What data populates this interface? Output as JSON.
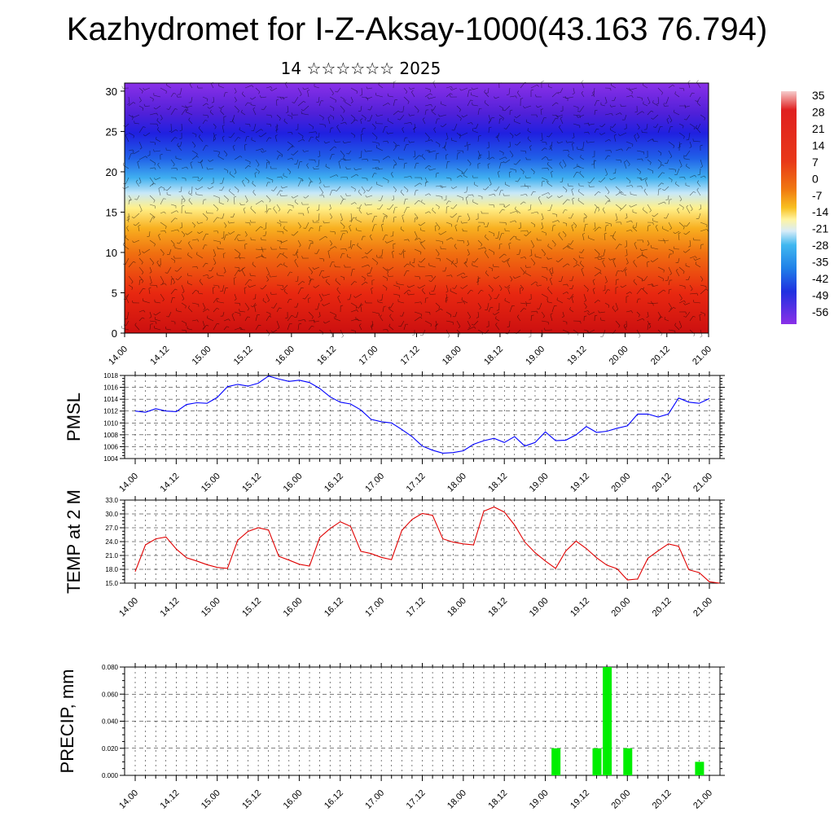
{
  "header": {
    "title": "Kazhydromet for I-Z-Aksay-1000(43.163 76.794)",
    "subtitle": "14 ☆☆☆☆☆☆ 2025"
  },
  "chart_data": [
    {
      "type": "heatmap",
      "name": "cross-section",
      "x_tick_labels": [
        "14.00",
        "14.12",
        "15.00",
        "15.12",
        "16.00",
        "16.12",
        "17.00",
        "17.12",
        "18.00",
        "18.12",
        "19.00",
        "19.12",
        "20.00",
        "20.12",
        "21.00"
      ],
      "y_tick_labels": [
        "0",
        "5",
        "10",
        "15",
        "20",
        "25",
        "30"
      ],
      "ylim": [
        0,
        31
      ],
      "colorbar_labels": [
        "35",
        "28",
        "21",
        "14",
        "7",
        "0",
        "-7",
        "-14",
        "-21",
        "-28",
        "-35",
        "-42",
        "-49",
        "-56"
      ],
      "colors": [
        "#f4c0c0",
        "#e22020",
        "#f06a10",
        "#f8c020",
        "#fff4a0",
        "#c8e8f8",
        "#30a8f0",
        "#2040e0",
        "#3010d0",
        "#8028e0"
      ],
      "note_overlay": "wind barbs and contour lines"
    },
    {
      "type": "line",
      "name": "pmsl",
      "ylabel": "PMSL",
      "ylim": [
        1004,
        1018
      ],
      "y_tick_labels": [
        "1004",
        "1006",
        "1008",
        "1010",
        "1012",
        "1014",
        "1016",
        "1018"
      ],
      "x_tick_labels": [
        "14.00",
        "14.12",
        "15.00",
        "15.12",
        "16.00",
        "16.12",
        "17.00",
        "17.12",
        "18.00",
        "18.12",
        "19.00",
        "19.12",
        "20.00",
        "20.12",
        "21.00"
      ],
      "line_color": "#0000ff",
      "values": [
        1012.0,
        1011.8,
        1012.4,
        1012.0,
        1011.9,
        1013.1,
        1013.4,
        1013.3,
        1014.3,
        1016.1,
        1016.5,
        1016.2,
        1016.7,
        1017.9,
        1017.4,
        1017.0,
        1017.2,
        1016.8,
        1015.8,
        1014.4,
        1013.5,
        1013.2,
        1012.2,
        1010.6,
        1010.2,
        1010.0,
        1008.9,
        1007.7,
        1006.1,
        1005.4,
        1004.9,
        1005.0,
        1005.3,
        1006.4,
        1007.0,
        1007.4,
        1006.7,
        1007.7,
        1006.1,
        1006.7,
        1008.5,
        1007.0,
        1007.1,
        1008.0,
        1009.4,
        1008.4,
        1008.6,
        1009.1,
        1009.5,
        1011.5,
        1011.5,
        1011.0,
        1011.5,
        1014.2,
        1013.5,
        1013.3,
        1014.1
      ]
    },
    {
      "type": "line",
      "name": "temperature",
      "ylabel": "TEMP at 2 M",
      "ylim": [
        15,
        33
      ],
      "y_tick_labels": [
        "15.0",
        "18.0",
        "21.0",
        "24.0",
        "27.0",
        "30.0",
        "33.0"
      ],
      "x_tick_labels": [
        "14.00",
        "14.12",
        "15.00",
        "15.12",
        "16.00",
        "16.12",
        "17.00",
        "17.12",
        "18.00",
        "18.12",
        "19.00",
        "19.12",
        "20.00",
        "20.12",
        "21.00"
      ],
      "line_color": "#e00000",
      "values": [
        17.5,
        23.3,
        24.6,
        25.0,
        22.4,
        20.5,
        19.8,
        19.0,
        18.4,
        18.2,
        24.3,
        26.2,
        27.0,
        26.5,
        20.8,
        20.0,
        19.1,
        18.7,
        24.9,
        26.8,
        28.3,
        27.3,
        21.9,
        21.4,
        20.6,
        20.1,
        26.4,
        28.8,
        30.1,
        29.7,
        24.6,
        23.9,
        23.5,
        23.3,
        30.6,
        31.5,
        30.4,
        27.6,
        23.9,
        21.6,
        19.8,
        18.2,
        22.0,
        24.1,
        22.5,
        20.5,
        18.9,
        18.1,
        15.7,
        15.9,
        20.4,
        22.0,
        23.5,
        23.0,
        17.9,
        17.3,
        15.3,
        15.0
      ]
    },
    {
      "type": "bar",
      "name": "precipitation",
      "ylabel": "PRECIP, mm",
      "ylim": [
        0,
        0.08
      ],
      "y_tick_labels": [
        "0.000",
        "0.020",
        "0.040",
        "0.060",
        "0.080"
      ],
      "x_tick_labels": [
        "14.00",
        "14.12",
        "15.00",
        "15.12",
        "16.00",
        "16.12",
        "17.00",
        "17.12",
        "18.00",
        "18.12",
        "19.00",
        "19.12",
        "20.00",
        "20.12",
        "21.00"
      ],
      "bar_color": "#00ee00",
      "values": [
        0,
        0,
        0,
        0,
        0,
        0,
        0,
        0,
        0,
        0,
        0,
        0,
        0,
        0,
        0,
        0,
        0,
        0,
        0,
        0,
        0,
        0,
        0,
        0,
        0,
        0,
        0,
        0,
        0,
        0,
        0,
        0,
        0,
        0,
        0,
        0,
        0,
        0,
        0,
        0,
        0,
        0.02,
        0,
        0,
        0,
        0.02,
        0.08,
        0,
        0.02,
        0,
        0,
        0,
        0,
        0,
        0,
        0.01,
        0,
        0
      ]
    }
  ]
}
